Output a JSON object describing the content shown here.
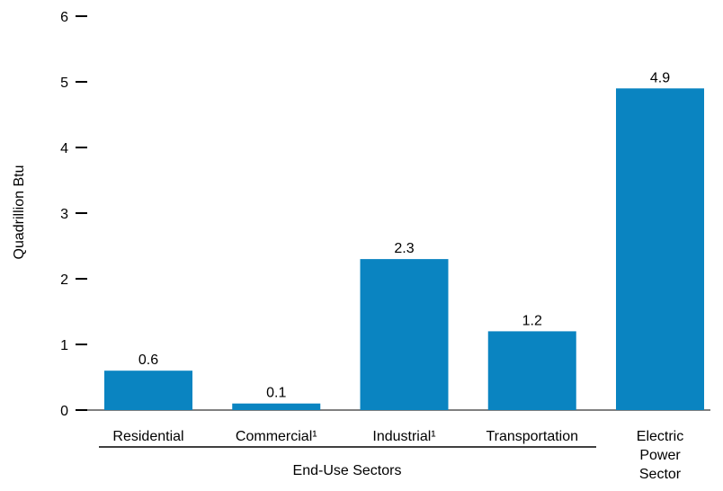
{
  "chart_data": {
    "type": "bar",
    "title": "",
    "ylabel": "Quadrillion Btu",
    "ylim": [
      0,
      6
    ],
    "yticks": [
      0,
      1,
      2,
      3,
      4,
      5,
      6
    ],
    "categories": [
      "Residential",
      "Commercial¹",
      "Industrial¹",
      "Transportation",
      "Electric Power Sector"
    ],
    "category_lines": [
      [
        "Residential"
      ],
      [
        "Commercial¹"
      ],
      [
        "Industrial¹"
      ],
      [
        "Transportation"
      ],
      [
        "Electric",
        "Power",
        "Sector"
      ]
    ],
    "values": [
      0.6,
      0.1,
      2.3,
      1.2,
      4.9
    ],
    "value_labels": [
      "0.6",
      "0.1",
      "2.3",
      "1.2",
      "4.9"
    ],
    "group_label": "End-Use Sectors",
    "bar_color": "#0a84c1",
    "grid": false,
    "legend": "none"
  }
}
